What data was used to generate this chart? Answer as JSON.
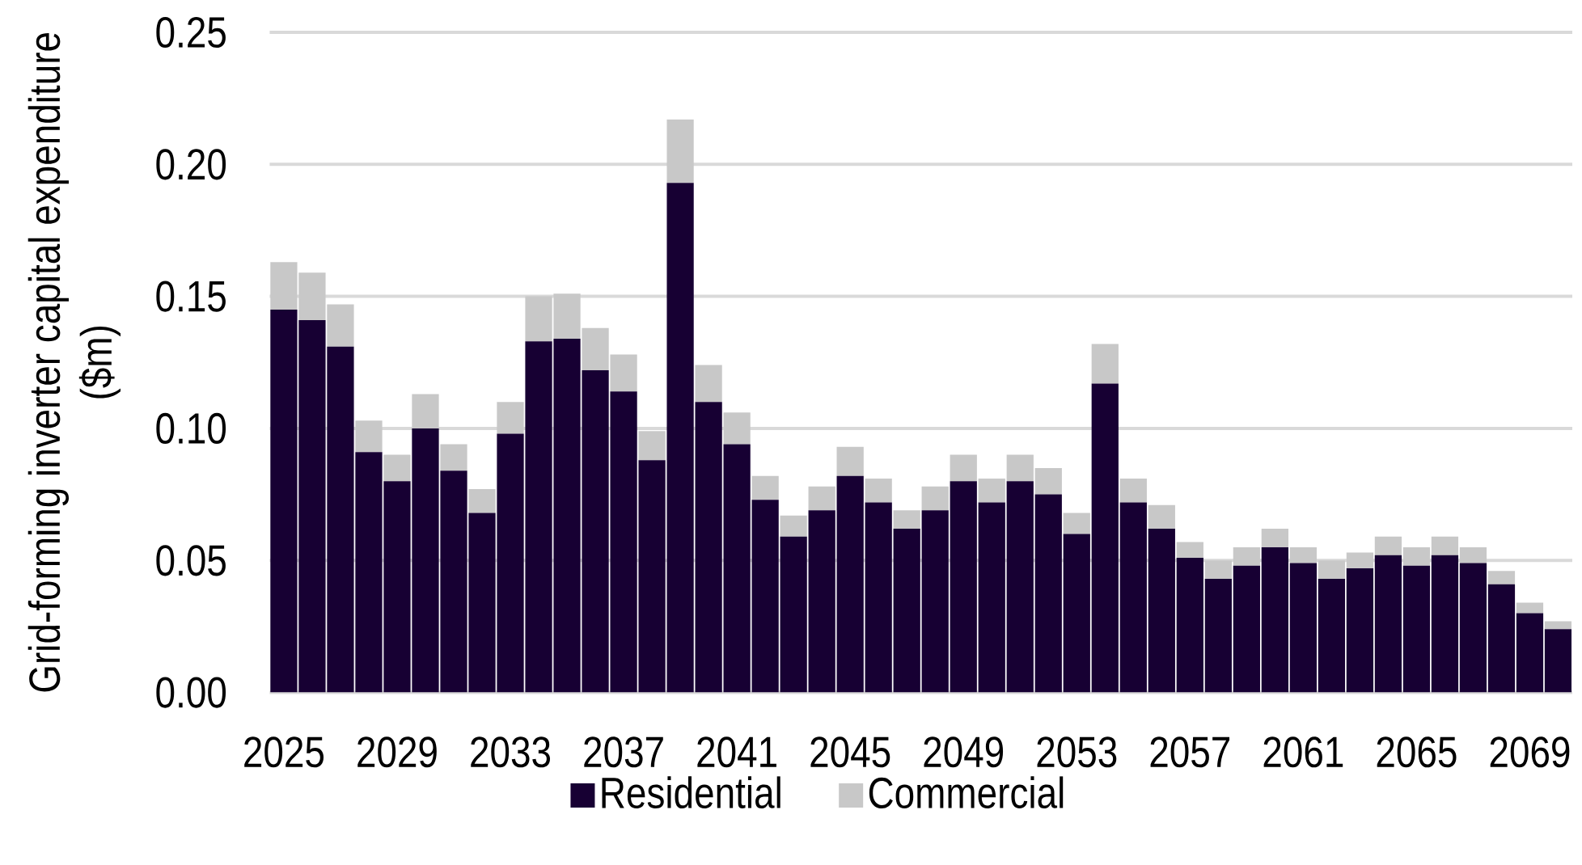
{
  "chart_data": {
    "type": "bar",
    "stacked": true,
    "ylabel": "Grid-forming inverter capital expenditure ($m)",
    "categories": [
      "2025",
      null,
      null,
      null,
      "2029",
      null,
      null,
      null,
      "2033",
      null,
      null,
      null,
      "2037",
      null,
      null,
      null,
      "2041",
      null,
      null,
      null,
      "2045",
      null,
      null,
      null,
      "2049",
      null,
      null,
      null,
      "2053",
      null,
      null,
      null,
      "2057",
      null,
      null,
      null,
      "2061",
      null,
      null,
      null,
      "2065",
      null,
      null,
      null,
      "2069",
      null
    ],
    "series": [
      {
        "name": "Residential",
        "color": "#170033",
        "values": [
          0.145,
          0.141,
          0.131,
          0.091,
          0.08,
          0.1,
          0.084,
          0.068,
          0.098,
          0.133,
          0.134,
          0.122,
          0.114,
          0.088,
          0.193,
          0.11,
          0.094,
          0.073,
          0.059,
          0.069,
          0.082,
          0.072,
          0.062,
          0.069,
          0.08,
          0.072,
          0.08,
          0.075,
          0.06,
          0.117,
          0.072,
          0.062,
          0.051,
          0.043,
          0.048,
          0.055,
          0.049,
          0.043,
          0.047,
          0.052,
          0.048,
          0.052,
          0.049,
          0.041,
          0.03,
          0.024
        ]
      },
      {
        "name": "Commercial",
        "color": "#c8c8c8",
        "values": [
          0.018,
          0.018,
          0.016,
          0.012,
          0.01,
          0.013,
          0.01,
          0.009,
          0.012,
          0.017,
          0.017,
          0.016,
          0.014,
          0.011,
          0.024,
          0.014,
          0.012,
          0.009,
          0.008,
          0.009,
          0.011,
          0.009,
          0.007,
          0.009,
          0.01,
          0.009,
          0.01,
          0.01,
          0.008,
          0.015,
          0.009,
          0.009,
          0.006,
          0.007,
          0.007,
          0.007,
          0.006,
          0.007,
          0.006,
          0.007,
          0.007,
          0.007,
          0.006,
          0.005,
          0.004,
          0.003
        ]
      }
    ],
    "ylim": [
      0,
      0.25
    ],
    "yticks": [
      {
        "value": 0,
        "label": "0.00"
      },
      {
        "value": 0.05,
        "label": "0.05"
      },
      {
        "value": 0.1,
        "label": "0.10"
      },
      {
        "value": 0.15,
        "label": "0.15"
      },
      {
        "value": 0.2,
        "label": "0.20"
      },
      {
        "value": 0.25,
        "label": "0.25"
      }
    ],
    "grid": "y",
    "legend": "bottom"
  }
}
